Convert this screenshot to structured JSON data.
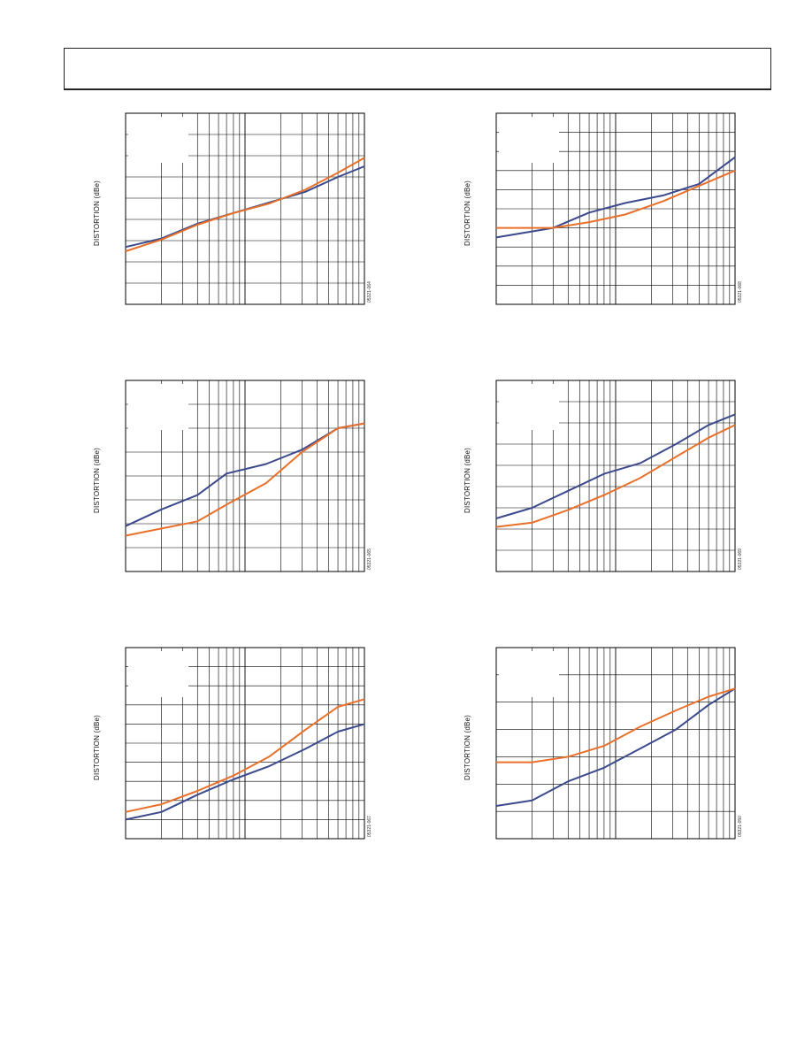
{
  "page": {
    "header": ""
  },
  "chart_data": [
    {
      "type": "line",
      "ylabel": "DISTORTION (dBe)",
      "figure_id": "05321-064",
      "xscale": "log",
      "grid": true,
      "legend_position": "top-left",
      "xlim": [
        1,
        100
      ],
      "ylim": [
        0,
        9
      ],
      "x": [
        1,
        2,
        4,
        8,
        16,
        32,
        60,
        100
      ],
      "series": [
        {
          "color": "#3b4a8c",
          "values": [
            2.7,
            3.1,
            3.8,
            4.3,
            4.8,
            5.3,
            6.0,
            6.5
          ]
        },
        {
          "color": "#e8702a",
          "values": [
            2.5,
            3.05,
            3.75,
            4.3,
            4.75,
            5.4,
            6.2,
            6.9
          ]
        }
      ]
    },
    {
      "type": "line",
      "ylabel": "DISTORTION (dBe)",
      "figure_id": "05321-068",
      "xscale": "log",
      "grid": true,
      "legend_position": "top-left",
      "xlim": [
        1,
        100
      ],
      "ylim": [
        0,
        10
      ],
      "x": [
        1,
        3,
        6,
        12,
        25,
        50,
        100
      ],
      "series": [
        {
          "color": "#3b4a8c",
          "values": [
            3.5,
            4.0,
            4.8,
            5.3,
            5.7,
            6.3,
            7.7
          ]
        },
        {
          "color": "#e8702a",
          "values": [
            4.0,
            4.0,
            4.3,
            4.7,
            5.4,
            6.2,
            7.0
          ]
        }
      ]
    },
    {
      "type": "line",
      "ylabel": "DISTORTION (dBe)",
      "figure_id": "05321-065",
      "xscale": "log",
      "grid": true,
      "legend_position": "top-left",
      "xlim": [
        1,
        100
      ],
      "ylim": [
        0,
        8
      ],
      "x": [
        1,
        2,
        4,
        7,
        15,
        30,
        60,
        100
      ],
      "series": [
        {
          "color": "#3b4a8c",
          "values": [
            1.9,
            2.6,
            3.2,
            4.1,
            4.5,
            5.1,
            6.0,
            6.2
          ]
        },
        {
          "color": "#e8702a",
          "values": [
            1.5,
            1.8,
            2.1,
            2.8,
            3.7,
            5.0,
            6.0,
            6.2
          ]
        }
      ]
    },
    {
      "type": "line",
      "ylabel": "DISTORTION (dBe)",
      "figure_id": "05321-069",
      "xscale": "log",
      "grid": true,
      "legend_position": "top-left",
      "xlim": [
        1,
        100
      ],
      "ylim": [
        0,
        9
      ],
      "x": [
        1,
        2,
        4,
        8,
        16,
        32,
        60,
        100
      ],
      "series": [
        {
          "color": "#3b4a8c",
          "values": [
            2.5,
            3.0,
            3.8,
            4.6,
            5.1,
            6.0,
            6.9,
            7.4
          ]
        },
        {
          "color": "#e8702a",
          "values": [
            2.1,
            2.3,
            2.9,
            3.6,
            4.4,
            5.4,
            6.3,
            6.9
          ]
        }
      ]
    },
    {
      "type": "line",
      "ylabel": "DISTORTION (dBe)",
      "figure_id": "05321-067",
      "xscale": "log",
      "grid": true,
      "legend_position": "top-left",
      "xlim": [
        1,
        100
      ],
      "ylim": [
        0,
        10
      ],
      "x": [
        1,
        2,
        4,
        8,
        16,
        32,
        60,
        100
      ],
      "series": [
        {
          "color": "#3b4a8c",
          "values": [
            1.0,
            1.4,
            2.3,
            3.1,
            3.8,
            4.7,
            5.6,
            6.0
          ]
        },
        {
          "color": "#e8702a",
          "values": [
            1.4,
            1.8,
            2.5,
            3.3,
            4.3,
            5.7,
            6.9,
            7.3
          ]
        }
      ]
    },
    {
      "type": "line",
      "ylabel": "DISTORTION (dBe)",
      "figure_id": "05321-050",
      "xscale": "log",
      "grid": true,
      "legend_position": "top-left",
      "xlim": [
        1,
        100
      ],
      "ylim": [
        0,
        7
      ],
      "x": [
        1,
        2,
        4,
        8,
        16,
        32,
        60,
        100
      ],
      "series": [
        {
          "color": "#3b4a8c",
          "values": [
            1.2,
            1.4,
            2.1,
            2.6,
            3.3,
            4.0,
            4.9,
            5.5
          ]
        },
        {
          "color": "#e8702a",
          "values": [
            2.8,
            2.8,
            3.0,
            3.4,
            4.1,
            4.7,
            5.2,
            5.5
          ]
        }
      ]
    }
  ]
}
